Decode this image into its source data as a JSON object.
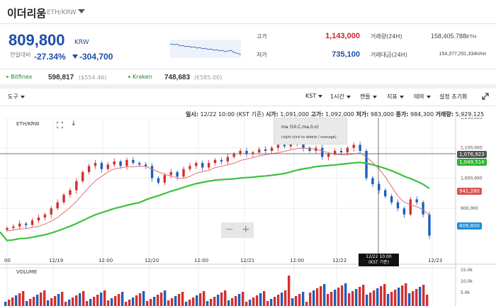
{
  "header": {
    "coin_name": "이더리움",
    "pair": "ETH/KRW"
  },
  "price": {
    "current": "809,800",
    "unit": "KRW",
    "prev_label": "전일대비",
    "change_pct": "-27.34%",
    "change_amount": "-304,700"
  },
  "stats": {
    "high_label": "고가",
    "high_value": "1,143,000",
    "low_label": "저가",
    "low_value": "735,100",
    "volume_label": "거래량(24H)",
    "volume_value": "158,405.788",
    "volume_unit": "ETH",
    "amount_label": "거래대금(24H)",
    "amount_value": "154,377,291,334",
    "amount_unit": "KRW"
  },
  "exchanges": [
    {
      "name": "Bitfinex",
      "price": "598,817",
      "sub": "($554.46)"
    },
    {
      "name": "Kraken",
      "price": "748,683",
      "sub": "(€585.00)"
    }
  ],
  "toolbar": {
    "tools": "도구",
    "currency": "KST",
    "interval": "1시간",
    "candle": "캔들",
    "indicators": "지표",
    "theme": "테마",
    "reset": "설정 초기화"
  },
  "info": {
    "time_label": "일시:",
    "time": "12/22 10:00 (KST 기준)",
    "open_label": "시가:",
    "open": "1,091,000",
    "high_label": "고가:",
    "high": "1,092,000",
    "low_label": "저가:",
    "low": "983,000",
    "close_label": "종가:",
    "close": "984,300",
    "vol_label": "거래량:",
    "vol": "5,929.125"
  },
  "chart": {
    "pair_label": "ETH/KRW",
    "volume_label": "VOLUME",
    "tooltip_line1": "ma (50,C,ma,0,n)",
    "tooltip_line2": "(right click to delete / manage)",
    "crosshair_date": "12/22 10:00",
    "crosshair_tz": "(KST 기준)",
    "price_tags": [
      "1,076,923",
      "1,049,514",
      "941,280",
      "809,800"
    ],
    "zoom_out": "−",
    "zoom_in": "+"
  },
  "chart_data": {
    "type": "line",
    "title": "ETH/KRW",
    "x_ticks": [
      "00",
      "12/19",
      "12:00",
      "12/20",
      "12:00",
      "12/21",
      "12:00",
      "12/22",
      "12:00",
      "12/23"
    ],
    "y_ticks": [
      "1,200,000",
      "1,100,000",
      "1,000,000",
      "900,000"
    ],
    "volume_ticks": [
      "15.0k",
      "10.0k",
      "5.0k"
    ],
    "ylim": [
      760000,
      1200000
    ],
    "candles_close": [
      835000,
      840000,
      850000,
      845000,
      860000,
      870000,
      880000,
      900000,
      920000,
      945000,
      960000,
      990000,
      1020000,
      1040000,
      1050000,
      1030000,
      1045000,
      1055000,
      1040000,
      1060000,
      1050000,
      1045000,
      1040000,
      1000000,
      985000,
      1010000,
      1020000,
      1005000,
      1030000,
      1040000,
      1050000,
      1035000,
      1050000,
      1060000,
      1055000,
      1070000,
      1080000,
      1090000,
      1080000,
      1085000,
      1095000,
      1090000,
      1100000,
      1110000,
      1105000,
      1115000,
      1120000,
      1100000,
      1090000,
      1100000,
      1070000,
      1080000,
      1090000,
      1085000,
      1100000,
      1110000,
      1090000,
      1000000,
      980000,
      960000,
      940000,
      920000,
      900000,
      880000,
      930000,
      920000,
      880000,
      810000
    ],
    "series": [
      {
        "name": "ma (50,C,ma,0,n)",
        "color": "#3cc23c"
      },
      {
        "color": "#e07070"
      }
    ],
    "grid": true
  },
  "colors": {
    "accent_blue": "#1c4fa6",
    "up_red": "#d32f2f",
    "down_blue": "#1c5fbf",
    "ma_green": "#3cc23c",
    "ma_red": "#e07070"
  }
}
